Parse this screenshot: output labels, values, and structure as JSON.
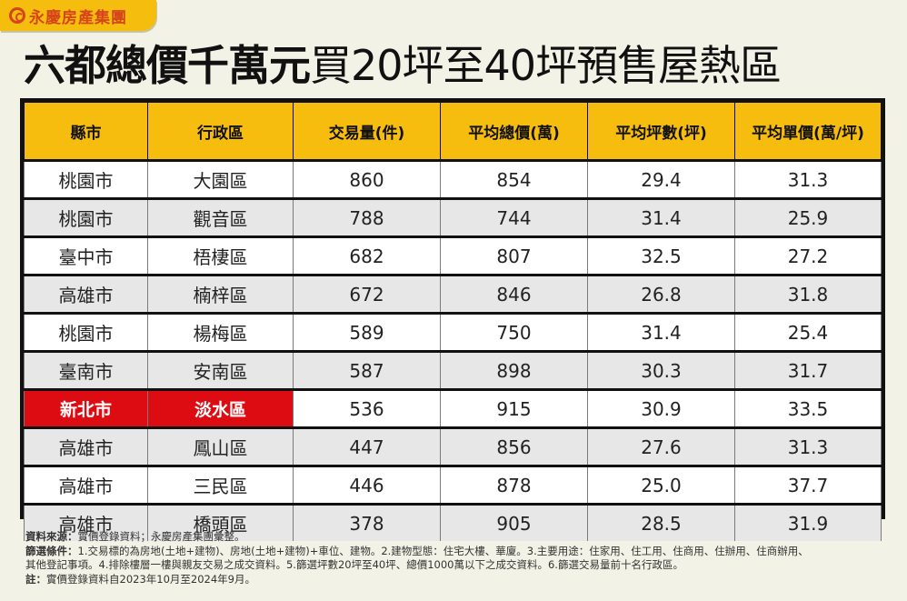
{
  "brand": {
    "logo_icon": "yungching-logo-icon",
    "name": "永慶房產集團",
    "colors": {
      "tab_bg": "#f5bd0e",
      "text": "#d6451a"
    }
  },
  "title": {
    "bold_part": "六都總價千萬元",
    "light_part": "買20坪至40坪預售屋熱區"
  },
  "colors": {
    "header_bg": "#f6bd0f",
    "highlight_bg": "#dd0c12",
    "row_alt_bg": "#e7e7e7",
    "page_bg": "#f3f2e6"
  },
  "table": {
    "headers": [
      "縣市",
      "行政區",
      "交易量(件)",
      "平均總價(萬)",
      "平均坪數(坪)",
      "平均單價(萬/坪)"
    ],
    "rows": [
      {
        "city": "桃園市",
        "district": "大園區",
        "volume": "860",
        "avg_total": "854",
        "avg_ping": "29.4",
        "avg_unit": "31.3"
      },
      {
        "city": "桃園市",
        "district": "觀音區",
        "volume": "788",
        "avg_total": "744",
        "avg_ping": "31.4",
        "avg_unit": "25.9"
      },
      {
        "city": "臺中市",
        "district": "梧棲區",
        "volume": "682",
        "avg_total": "807",
        "avg_ping": "32.5",
        "avg_unit": "27.2"
      },
      {
        "city": "高雄市",
        "district": "楠梓區",
        "volume": "672",
        "avg_total": "846",
        "avg_ping": "26.8",
        "avg_unit": "31.8"
      },
      {
        "city": "桃園市",
        "district": "楊梅區",
        "volume": "589",
        "avg_total": "750",
        "avg_ping": "31.4",
        "avg_unit": "25.4"
      },
      {
        "city": "臺南市",
        "district": "安南區",
        "volume": "587",
        "avg_total": "898",
        "avg_ping": "30.3",
        "avg_unit": "31.7"
      },
      {
        "city": "新北市",
        "district": "淡水區",
        "volume": "536",
        "avg_total": "915",
        "avg_ping": "30.9",
        "avg_unit": "33.5"
      },
      {
        "city": "高雄市",
        "district": "鳳山區",
        "volume": "447",
        "avg_total": "856",
        "avg_ping": "27.6",
        "avg_unit": "31.3"
      },
      {
        "city": "高雄市",
        "district": "三民區",
        "volume": "446",
        "avg_total": "878",
        "avg_ping": "25.0",
        "avg_unit": "37.7"
      },
      {
        "city": "高雄市",
        "district": "橋頭區",
        "volume": "378",
        "avg_total": "905",
        "avg_ping": "28.5",
        "avg_unit": "31.9"
      }
    ],
    "highlighted_row_index": 6
  },
  "notes": {
    "source_label": "資料來源：",
    "source_text": "實價登錄資料；永慶房產集團彙整。",
    "filter_label": "篩選條件：",
    "filter_line1": "1.交易標的為房地(土地+建物)、房地(土地+建物)+車位、建物。2.建物型態：住宅大樓、華廈。3.主要用途：住家用、住工用、住商用、住辦用、住商辦用、",
    "filter_line2": "其他登記事項。4.排除樓層一樓與親友交易之成交資料。5.篩選坪數20坪至40坪、總價1000萬以下之成交資料。6.篩選交易量前十名行政區。",
    "note_label": "註：",
    "note_text": "實價登錄資料自2023年10月至2024年9月。"
  },
  "chart_data": {
    "type": "table",
    "title": "六都總價千萬元買20坪至40坪預售屋熱區",
    "columns": [
      "縣市",
      "行政區",
      "交易量(件)",
      "平均總價(萬)",
      "平均坪數(坪)",
      "平均單價(萬/坪)"
    ],
    "rows": [
      [
        "桃園市",
        "大園區",
        860,
        854,
        29.4,
        31.3
      ],
      [
        "桃園市",
        "觀音區",
        788,
        744,
        31.4,
        25.9
      ],
      [
        "臺中市",
        "梧棲區",
        682,
        807,
        32.5,
        27.2
      ],
      [
        "高雄市",
        "楠梓區",
        672,
        846,
        26.8,
        31.8
      ],
      [
        "桃園市",
        "楊梅區",
        589,
        750,
        31.4,
        25.4
      ],
      [
        "臺南市",
        "安南區",
        587,
        898,
        30.3,
        31.7
      ],
      [
        "新北市",
        "淡水區",
        536,
        915,
        30.9,
        33.5
      ],
      [
        "高雄市",
        "鳳山區",
        447,
        856,
        27.6,
        31.3
      ],
      [
        "高雄市",
        "三民區",
        446,
        878,
        25.0,
        37.7
      ],
      [
        "高雄市",
        "橋頭區",
        378,
        905,
        28.5,
        31.9
      ]
    ],
    "highlight": {
      "row": 6,
      "columns": [
        0,
        1
      ],
      "color": "#dd0c12"
    },
    "source": "實價登錄資料；永慶房產集團彙整。",
    "period": "2023年10月至2024年9月"
  }
}
